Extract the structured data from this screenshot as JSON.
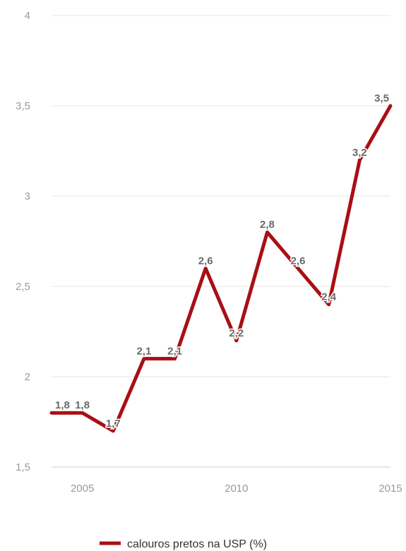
{
  "chart_data": {
    "type": "line",
    "title": "",
    "xlabel": "",
    "ylabel": "",
    "x": [
      2004,
      2005,
      2006,
      2007,
      2008,
      2009,
      2010,
      2011,
      2012,
      2013,
      2014,
      2015
    ],
    "x_ticks": [
      "2005",
      "2010",
      "2015"
    ],
    "y_ticks": [
      "4",
      "3,5",
      "3",
      "2,5",
      "2",
      "1,5"
    ],
    "ylim": [
      1.5,
      4
    ],
    "grid": true,
    "legend_position": "bottom",
    "series": [
      {
        "name": "calouros pretos na USP (%)",
        "color": "#a80f14",
        "values": [
          1.8,
          1.8,
          1.7,
          2.1,
          2.1,
          2.6,
          2.2,
          2.8,
          2.6,
          2.4,
          3.2,
          3.5
        ],
        "labels": [
          "1,8",
          "1,8",
          "1,7",
          "2,1",
          "2,1",
          "2,6",
          "2,2",
          "2,8",
          "2,6",
          "2,4",
          "3,2",
          "3,5"
        ]
      }
    ]
  }
}
